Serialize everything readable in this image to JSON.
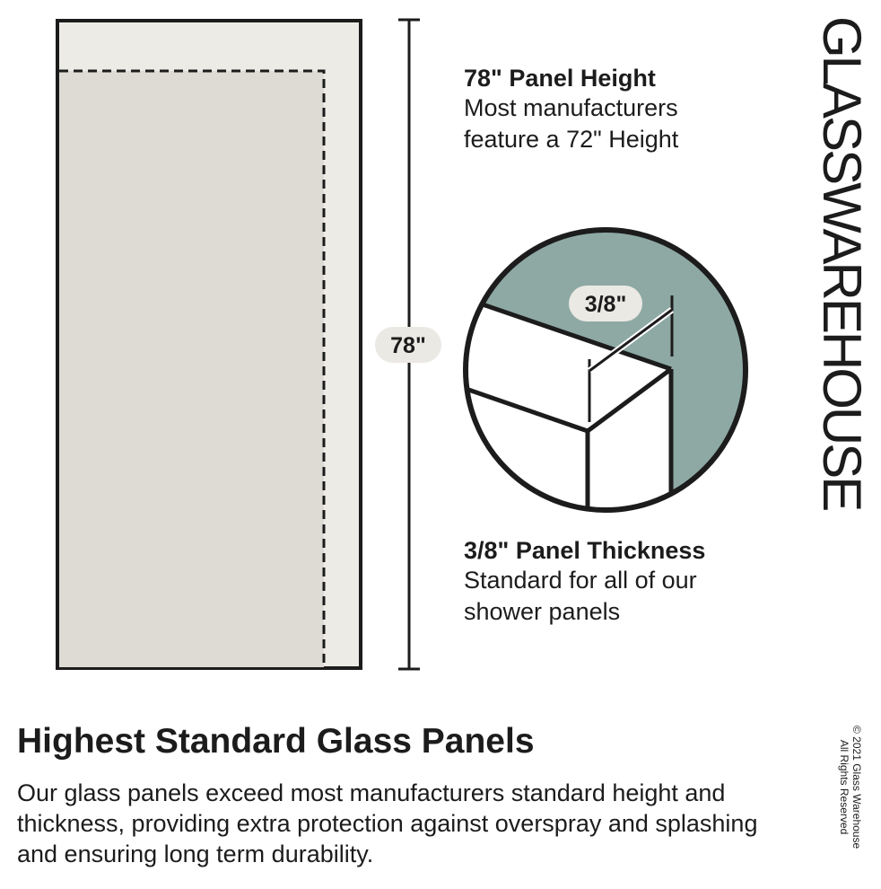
{
  "height_callout": {
    "title": "78\" Panel Height",
    "body": "Most manufacturers feature a 72\" Height"
  },
  "height_label": "78\"",
  "thickness_label": "3/8\"",
  "thickness_callout": {
    "title": "3/8\" Panel Thickness",
    "body": "Standard for all of our shower panels"
  },
  "brand": "GLASSWAREHOUSE",
  "heading": "Highest Standard Glass Panels",
  "description": "Our glass panels exceed most manufacturers standard height and thickness, providing extra protection against overspray and splashing and ensuring long term durability.",
  "copyright": {
    "line1": "© 2021 Glass Warehouse",
    "line2": "All Rights Reserved"
  },
  "colors": {
    "panel_outer": "#edebe6",
    "panel_inner": "#dedbd4",
    "teal": "#8ea9a4",
    "pill": "#ebe9e4",
    "ink": "#1c1c1c"
  }
}
